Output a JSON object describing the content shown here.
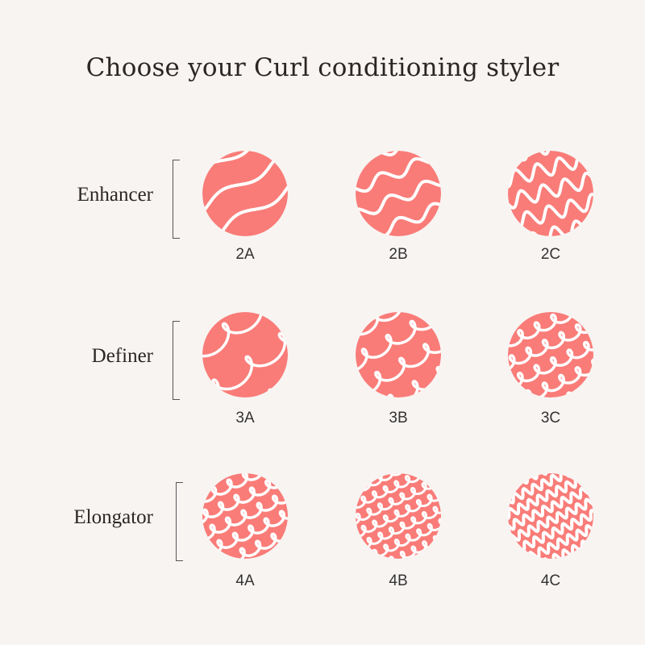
{
  "title": "Choose your Curl conditioning styler",
  "colors": {
    "background": "#f8f4f2",
    "circle": "#f97c78",
    "pattern": "#ffffff"
  },
  "rows": [
    {
      "label": "Enhancer",
      "types": [
        "2A",
        "2B",
        "2C"
      ]
    },
    {
      "label": "Definer",
      "types": [
        "3A",
        "3B",
        "3C"
      ]
    },
    {
      "label": "Elongator",
      "types": [
        "4A",
        "4B",
        "4C"
      ]
    }
  ]
}
